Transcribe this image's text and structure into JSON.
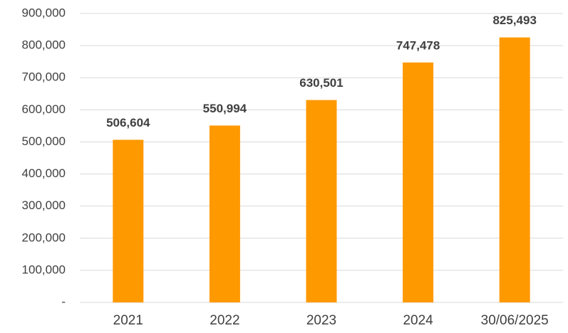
{
  "chart_data": {
    "type": "bar",
    "categories": [
      "2021",
      "2022",
      "2023",
      "2024",
      "30/06/2025"
    ],
    "values": [
      506604,
      550994,
      630501,
      747478,
      825493
    ],
    "value_labels": [
      "506,604",
      "550,994",
      "630,501",
      "747,478",
      "825,493"
    ],
    "color": "#ff9900",
    "ylim": [
      0,
      900000
    ],
    "yticks": [
      {
        "value": 0,
        "label": "-"
      },
      {
        "value": 100000,
        "label": "100,000"
      },
      {
        "value": 200000,
        "label": "200,000"
      },
      {
        "value": 300000,
        "label": "300,000"
      },
      {
        "value": 400000,
        "label": "400,000"
      },
      {
        "value": 500000,
        "label": "500,000"
      },
      {
        "value": 600000,
        "label": "600,000"
      },
      {
        "value": 700000,
        "label": "700,000"
      },
      {
        "value": 800000,
        "label": "800,000"
      },
      {
        "value": 900000,
        "label": "900,000"
      }
    ],
    "grid": true
  }
}
